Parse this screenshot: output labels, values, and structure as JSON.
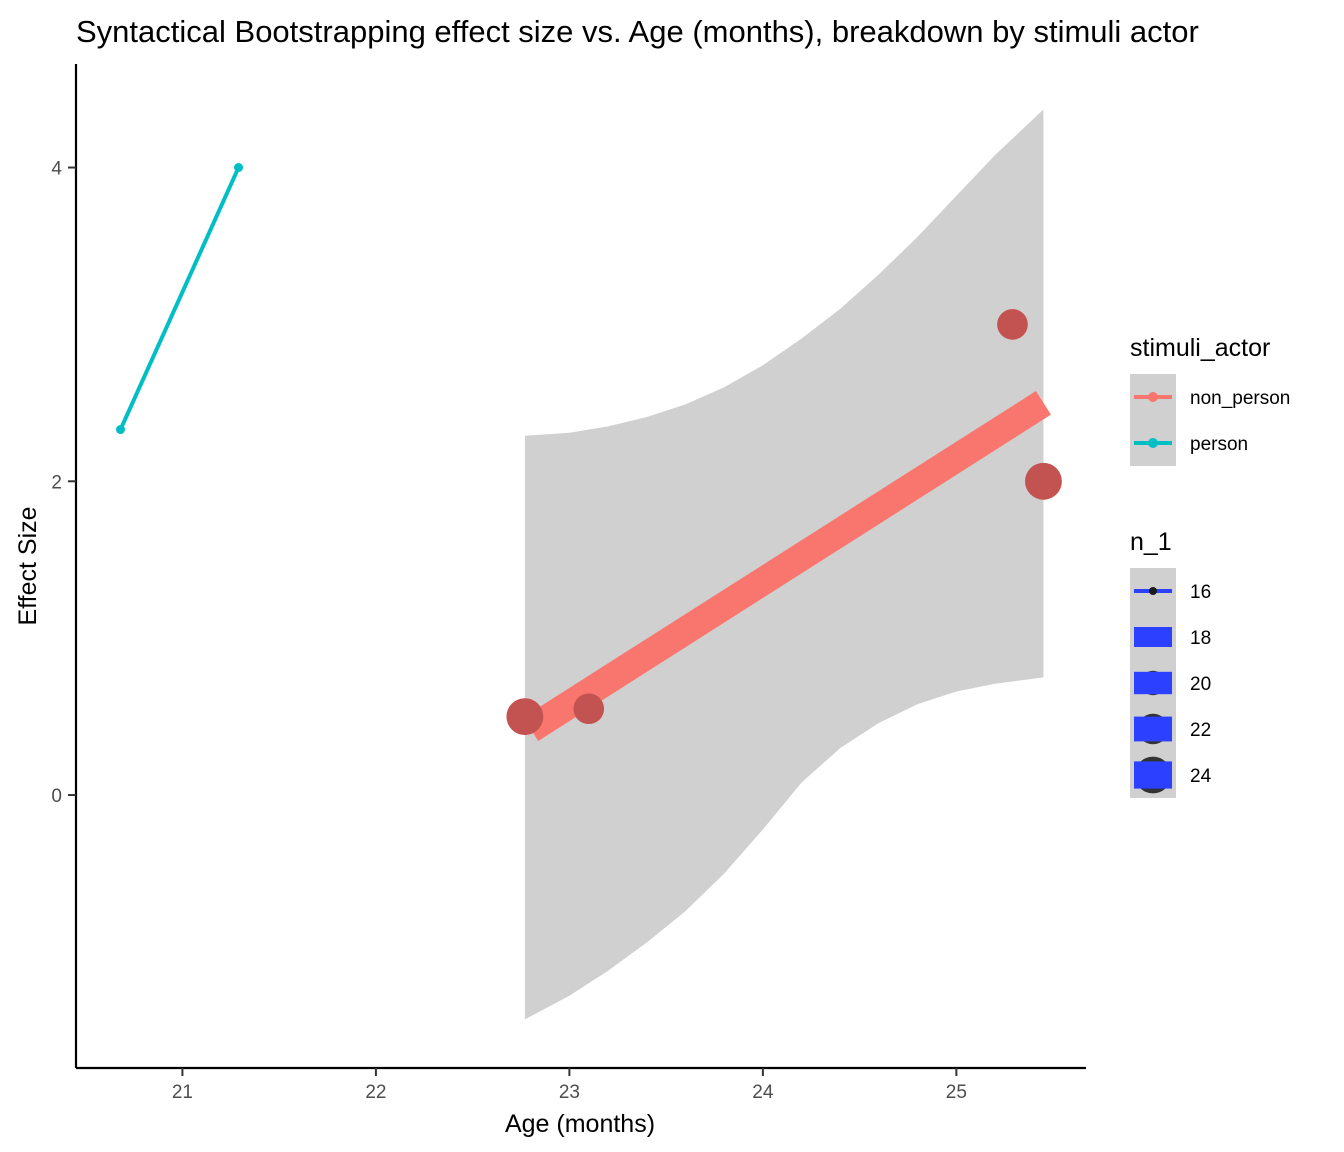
{
  "chart_data": {
    "type": "scatter",
    "title": "Syntactical Bootstrapping effect size vs. Age (months), breakdown by stimuli actor",
    "xlabel": "Age (months)",
    "ylabel": "Effect Size",
    "xlim": [
      20.45,
      25.67
    ],
    "ylim": [
      -1.74,
      4.66
    ],
    "x_ticks": [
      21,
      22,
      23,
      24,
      25
    ],
    "y_ticks": [
      0,
      2,
      4
    ],
    "grid": false,
    "series": [
      {
        "name": "non_person",
        "color": "#F8766D",
        "points": [
          {
            "x": 22.77,
            "y": 0.5,
            "n": 24
          },
          {
            "x": 23.1,
            "y": 0.55,
            "n": 22
          },
          {
            "x": 25.29,
            "y": 3.0,
            "n": 22
          },
          {
            "x": 25.45,
            "y": 2.0,
            "n": 24
          }
        ],
        "fit": {
          "x": [
            22.8,
            25.45
          ],
          "y": [
            0.42,
            2.5
          ]
        },
        "ribbon": {
          "x": [
            22.77,
            23.0,
            23.2,
            23.4,
            23.6,
            23.8,
            24.0,
            24.2,
            24.4,
            24.6,
            24.8,
            25.0,
            25.2,
            25.45
          ],
          "upper": [
            2.29,
            2.31,
            2.35,
            2.41,
            2.49,
            2.6,
            2.74,
            2.91,
            3.1,
            3.32,
            3.56,
            3.82,
            4.08,
            4.37
          ],
          "lower": [
            -1.43,
            -1.28,
            -1.12,
            -0.94,
            -0.74,
            -0.5,
            -0.22,
            0.08,
            0.3,
            0.46,
            0.58,
            0.66,
            0.71,
            0.75
          ]
        }
      },
      {
        "name": "person",
        "color": "#00BFC4",
        "points": [
          {
            "x": 20.68,
            "y": 2.33,
            "n": 16
          },
          {
            "x": 21.29,
            "y": 4.0,
            "n": 16
          }
        ],
        "fit": {
          "x": [
            20.68,
            21.29
          ],
          "y": [
            2.33,
            4.0
          ]
        }
      }
    ],
    "legends": [
      {
        "title": "stimuli_actor",
        "position": "right",
        "entries": [
          {
            "label": "non_person",
            "color": "#F8766D"
          },
          {
            "label": "person",
            "color": "#00BFC4"
          }
        ]
      },
      {
        "title": "n_1",
        "position": "right",
        "color": "#2B41FF",
        "entries": [
          {
            "label": "16",
            "n": 16
          },
          {
            "label": "18",
            "n": 18
          },
          {
            "label": "20",
            "n": 20
          },
          {
            "label": "22",
            "n": 22
          },
          {
            "label": "24",
            "n": 24
          }
        ]
      }
    ],
    "colors": {
      "ribbon": "#D0D0D0",
      "point_overlay": "#B04848",
      "axis": "#000000",
      "tick_label": "#4d4d4d",
      "legend_key_bg": "#D0D0D0",
      "n_legend_fill": "#2B41FF"
    }
  }
}
